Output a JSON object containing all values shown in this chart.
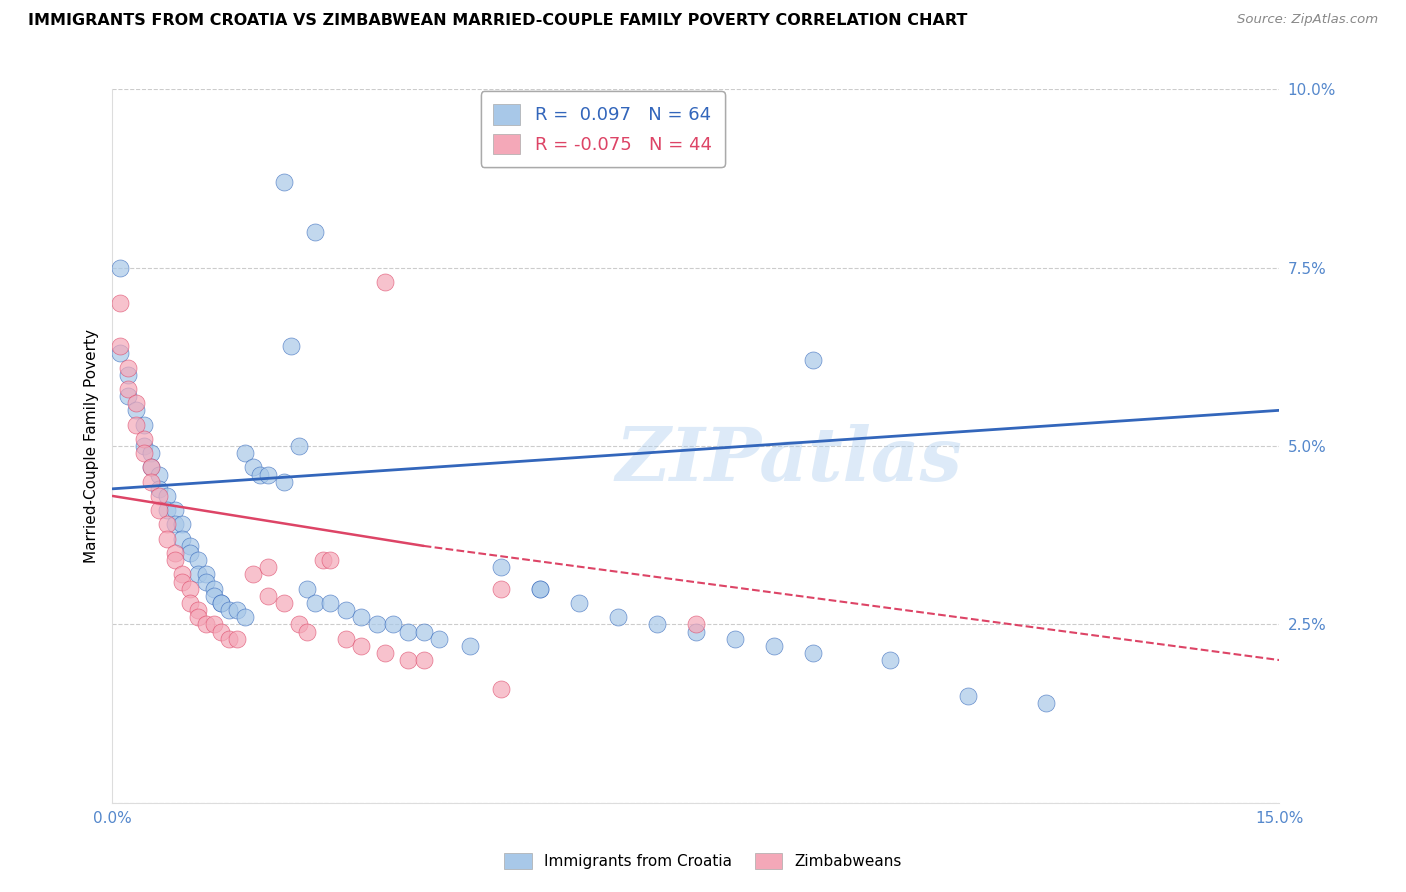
{
  "title": "IMMIGRANTS FROM CROATIA VS ZIMBABWEAN MARRIED-COUPLE FAMILY POVERTY CORRELATION CHART",
  "source": "Source: ZipAtlas.com",
  "ylabel": "Married-Couple Family Poverty",
  "xmin": 0.0,
  "xmax": 0.15,
  "ymin": 0.0,
  "ymax": 0.1,
  "blue_R": 0.097,
  "blue_N": 64,
  "pink_R": -0.075,
  "pink_N": 44,
  "blue_color": "#A8C8E8",
  "pink_color": "#F4A8B8",
  "blue_line_color": "#3366BB",
  "pink_line_color": "#DD4466",
  "tick_color": "#5588CC",
  "watermark": "ZIPatlas",
  "legend_label_blue": "Immigrants from Croatia",
  "legend_label_pink": "Zimbabweans",
  "blue_line_y0": 0.044,
  "blue_line_y1": 0.055,
  "pink_line_solid_x0": 0.0,
  "pink_line_solid_x1": 0.04,
  "pink_line_y0": 0.043,
  "pink_line_y_mid": 0.036,
  "pink_line_y1": 0.02,
  "blue_scatter_x": [
    0.001,
    0.001,
    0.002,
    0.002,
    0.003,
    0.004,
    0.004,
    0.005,
    0.005,
    0.006,
    0.006,
    0.007,
    0.007,
    0.008,
    0.008,
    0.009,
    0.009,
    0.01,
    0.01,
    0.011,
    0.011,
    0.012,
    0.012,
    0.013,
    0.013,
    0.014,
    0.014,
    0.015,
    0.016,
    0.017,
    0.017,
    0.018,
    0.019,
    0.02,
    0.022,
    0.023,
    0.024,
    0.025,
    0.026,
    0.028,
    0.03,
    0.032,
    0.034,
    0.036,
    0.038,
    0.04,
    0.042,
    0.046,
    0.05,
    0.055,
    0.06,
    0.065,
    0.07,
    0.075,
    0.08,
    0.085,
    0.09,
    0.1,
    0.11,
    0.12,
    0.022,
    0.026,
    0.055,
    0.09
  ],
  "blue_scatter_y": [
    0.075,
    0.063,
    0.06,
    0.057,
    0.055,
    0.053,
    0.05,
    0.049,
    0.047,
    0.046,
    0.044,
    0.043,
    0.041,
    0.041,
    0.039,
    0.039,
    0.037,
    0.036,
    0.035,
    0.034,
    0.032,
    0.032,
    0.031,
    0.03,
    0.029,
    0.028,
    0.028,
    0.027,
    0.027,
    0.026,
    0.049,
    0.047,
    0.046,
    0.046,
    0.045,
    0.064,
    0.05,
    0.03,
    0.028,
    0.028,
    0.027,
    0.026,
    0.025,
    0.025,
    0.024,
    0.024,
    0.023,
    0.022,
    0.033,
    0.03,
    0.028,
    0.026,
    0.025,
    0.024,
    0.023,
    0.022,
    0.021,
    0.02,
    0.015,
    0.014,
    0.087,
    0.08,
    0.03,
    0.062
  ],
  "pink_scatter_x": [
    0.001,
    0.001,
    0.002,
    0.002,
    0.003,
    0.003,
    0.004,
    0.004,
    0.005,
    0.005,
    0.006,
    0.006,
    0.007,
    0.007,
    0.008,
    0.008,
    0.009,
    0.009,
    0.01,
    0.01,
    0.011,
    0.011,
    0.012,
    0.013,
    0.014,
    0.015,
    0.016,
    0.018,
    0.02,
    0.022,
    0.024,
    0.025,
    0.027,
    0.03,
    0.032,
    0.035,
    0.038,
    0.04,
    0.05,
    0.075,
    0.035,
    0.02,
    0.028,
    0.05
  ],
  "pink_scatter_y": [
    0.07,
    0.064,
    0.061,
    0.058,
    0.056,
    0.053,
    0.051,
    0.049,
    0.047,
    0.045,
    0.043,
    0.041,
    0.039,
    0.037,
    0.035,
    0.034,
    0.032,
    0.031,
    0.03,
    0.028,
    0.027,
    0.026,
    0.025,
    0.025,
    0.024,
    0.023,
    0.023,
    0.032,
    0.029,
    0.028,
    0.025,
    0.024,
    0.034,
    0.023,
    0.022,
    0.021,
    0.02,
    0.02,
    0.03,
    0.025,
    0.073,
    0.033,
    0.034,
    0.016
  ],
  "background_color": "#ffffff",
  "grid_color": "#cccccc"
}
